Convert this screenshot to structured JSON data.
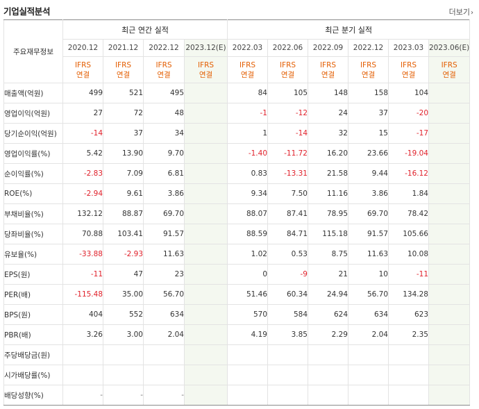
{
  "section": {
    "title": "기업실적분석",
    "more_label": "더보기",
    "more_icon": "chevron-right-icon"
  },
  "table": {
    "row_header_title": "주요재무정보",
    "annual_group": "최근 연간 실적",
    "quarter_group": "최근 분기 실적",
    "annual_periods": [
      "2020.12",
      "2021.12",
      "2022.12",
      "2023.12(E)"
    ],
    "quarter_periods": [
      "2022.03",
      "2022.06",
      "2022.09",
      "2022.12",
      "2023.03",
      "2023.06(E)"
    ],
    "ifrs_line1": "IFRS",
    "ifrs_line2": "연결",
    "estimate_bg": "#f4f8f0",
    "negative_color": "#e0202a",
    "ifrs_color": "#e35d00",
    "rows": [
      {
        "label": "매출액(억원)",
        "annual": [
          "499",
          "521",
          "495",
          ""
        ],
        "quarter": [
          "84",
          "105",
          "148",
          "158",
          "104",
          ""
        ]
      },
      {
        "label": "영업이익(억원)",
        "annual": [
          "27",
          "72",
          "48",
          ""
        ],
        "quarter": [
          "-1",
          "-12",
          "24",
          "37",
          "-20",
          ""
        ]
      },
      {
        "label": "당기순이익(억원)",
        "annual": [
          "-14",
          "37",
          "34",
          ""
        ],
        "quarter": [
          "1",
          "-14",
          "32",
          "15",
          "-17",
          ""
        ]
      },
      {
        "label": "영업이익률(%)",
        "annual": [
          "5.42",
          "13.90",
          "9.70",
          ""
        ],
        "quarter": [
          "-1.40",
          "-11.72",
          "16.20",
          "23.66",
          "-19.04",
          ""
        ]
      },
      {
        "label": "순이익률(%)",
        "annual": [
          "-2.83",
          "7.09",
          "6.81",
          ""
        ],
        "quarter": [
          "0.83",
          "-13.31",
          "21.58",
          "9.44",
          "-16.12",
          ""
        ]
      },
      {
        "label": "ROE(%)",
        "annual": [
          "-2.94",
          "9.61",
          "3.86",
          ""
        ],
        "quarter": [
          "9.34",
          "7.50",
          "11.16",
          "3.86",
          "1.84",
          ""
        ]
      },
      {
        "label": "부채비율(%)",
        "annual": [
          "132.12",
          "88.87",
          "69.70",
          ""
        ],
        "quarter": [
          "88.07",
          "87.41",
          "78.95",
          "69.70",
          "78.42",
          ""
        ]
      },
      {
        "label": "당좌비율(%)",
        "annual": [
          "70.88",
          "103.41",
          "91.57",
          ""
        ],
        "quarter": [
          "88.59",
          "84.71",
          "115.18",
          "91.57",
          "105.66",
          ""
        ]
      },
      {
        "label": "유보율(%)",
        "annual": [
          "-33.88",
          "-2.93",
          "11.63",
          ""
        ],
        "quarter": [
          "1.02",
          "0.53",
          "8.75",
          "11.63",
          "10.08",
          ""
        ]
      },
      {
        "label": "EPS(원)",
        "annual": [
          "-11",
          "47",
          "23",
          ""
        ],
        "quarter": [
          "0",
          "-9",
          "21",
          "10",
          "-11",
          ""
        ]
      },
      {
        "label": "PER(배)",
        "annual": [
          "-115.48",
          "35.00",
          "56.70",
          ""
        ],
        "quarter": [
          "51.46",
          "60.34",
          "24.94",
          "56.70",
          "134.28",
          ""
        ]
      },
      {
        "label": "BPS(원)",
        "annual": [
          "404",
          "552",
          "634",
          ""
        ],
        "quarter": [
          "570",
          "584",
          "624",
          "634",
          "623",
          ""
        ]
      },
      {
        "label": "PBR(배)",
        "annual": [
          "3.26",
          "3.00",
          "2.04",
          ""
        ],
        "quarter": [
          "4.19",
          "3.85",
          "2.29",
          "2.04",
          "2.35",
          ""
        ]
      },
      {
        "label": "주당배당금(원)",
        "annual": [
          "",
          "",
          "",
          ""
        ],
        "quarter": [
          "",
          "",
          "",
          "",
          "",
          ""
        ]
      },
      {
        "label": "시가배당률(%)",
        "annual": [
          "",
          "",
          "",
          ""
        ],
        "quarter": [
          "",
          "",
          "",
          "",
          "",
          ""
        ]
      },
      {
        "label": "배당성향(%)",
        "annual": [
          "-",
          "-",
          "-",
          ""
        ],
        "quarter": [
          "",
          "",
          "",
          "",
          "",
          ""
        ]
      }
    ]
  }
}
